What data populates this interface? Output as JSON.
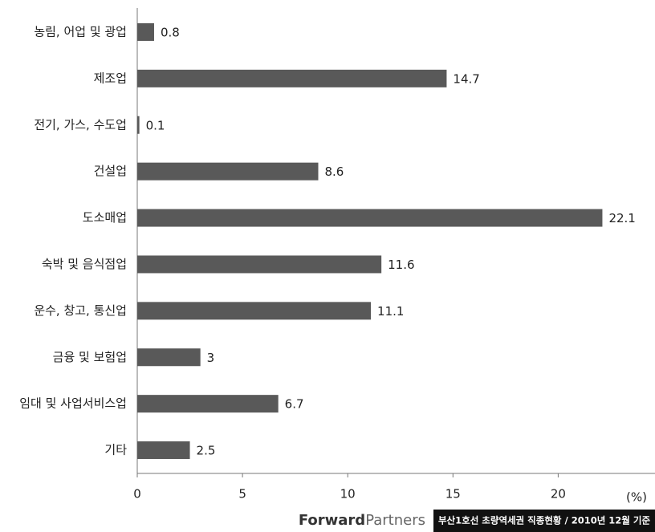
{
  "chart_data": {
    "type": "bar",
    "orientation": "horizontal",
    "categories": [
      "농림, 어업 및 광업",
      "제조업",
      "전기, 가스, 수도업",
      "건설업",
      "도소매업",
      "숙박 및 음식점업",
      "운수, 창고, 통신업",
      "금융 및 보험업",
      "임대 및 사업서비스업",
      "기타"
    ],
    "values": [
      0.8,
      14.7,
      0.1,
      8.6,
      22.1,
      11.6,
      11.1,
      3,
      6.7,
      2.5
    ],
    "color": "#595959",
    "xlim": [
      0,
      24.6
    ],
    "xticks": [
      0,
      5,
      10,
      15,
      20
    ],
    "xlabel": "(%)",
    "grid": false
  },
  "footer": {
    "brand_bold": "Forward",
    "brand_light": "Partners",
    "caption": "부산1호선 초량역세권 직종현황 / 2010년 12월 기준"
  }
}
